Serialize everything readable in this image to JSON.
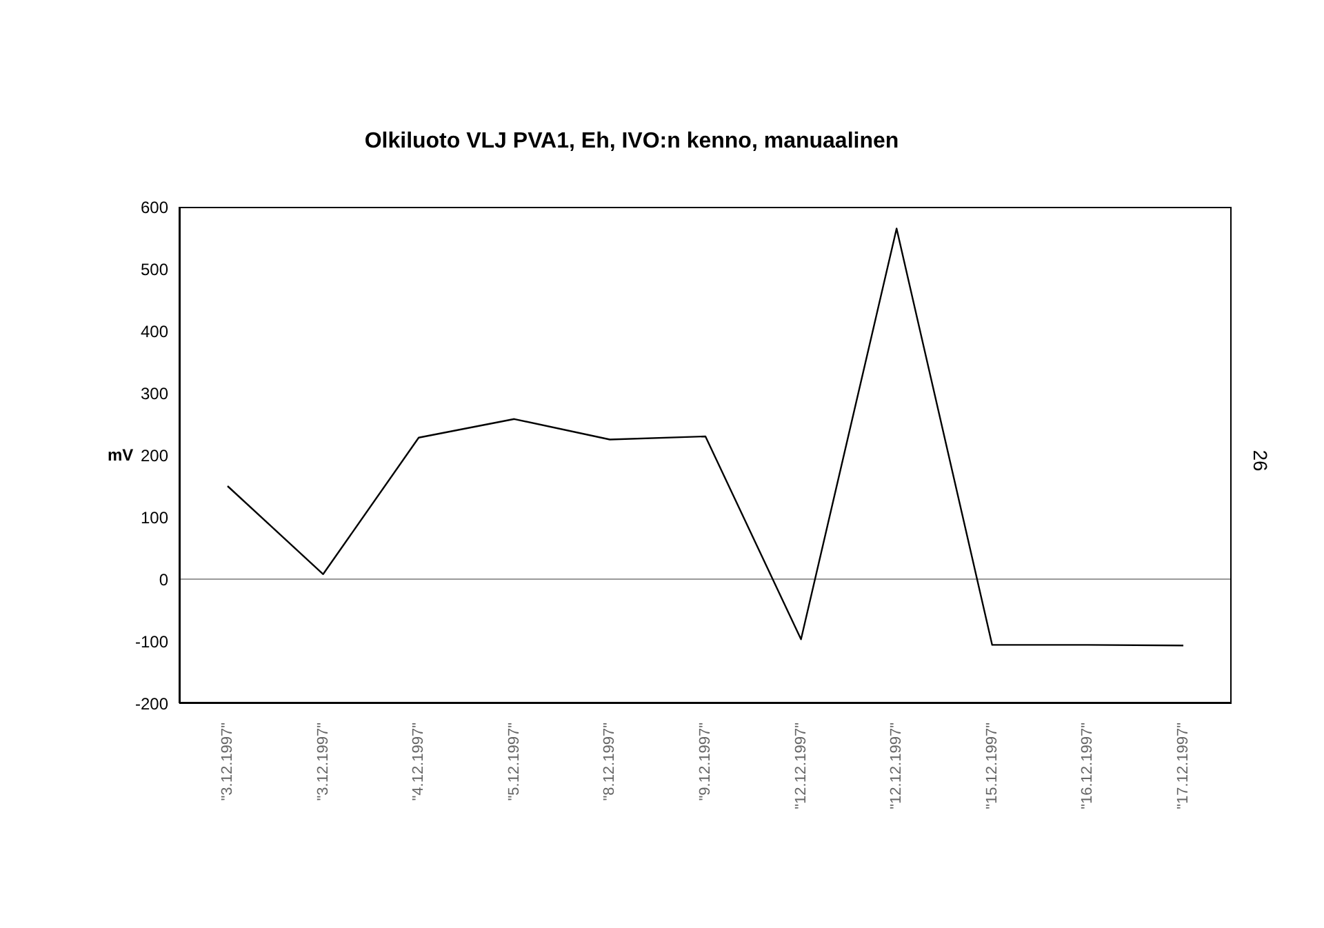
{
  "chart_data": {
    "type": "line",
    "title": "Olkiluoto VLJ PVA1, Eh, IVO:n kenno, manuaalinen",
    "ylabel": "mV",
    "categories": [
      "\"3.12.1997\"",
      "\"3.12.1997\"",
      "\"4.12.1997\"",
      "\"5.12.1997\"",
      "\"8.12.1997\"",
      "\"9.12.1997\"",
      "\"12.12.1997\"",
      "\"12.12.1997\"",
      "\"15.12.1997\"",
      "\"16.12.1997\"",
      "\"17.12.1997\""
    ],
    "series": [
      {
        "color": "#000000",
        "values": [
          150,
          8,
          228,
          258,
          225,
          230,
          -97,
          565,
          -106,
          -106,
          -107
        ]
      }
    ],
    "ylim": [
      -200,
      600
    ],
    "yticks": [
      -200,
      -100,
      0,
      100,
      200,
      300,
      400,
      500,
      600
    ],
    "ref_lines": [
      {
        "axis": "y",
        "value": 0,
        "color": "#999999"
      }
    ],
    "annotations": [
      "26"
    ],
    "grid": false,
    "legend": false,
    "marker": "none",
    "line_style": "solid"
  }
}
